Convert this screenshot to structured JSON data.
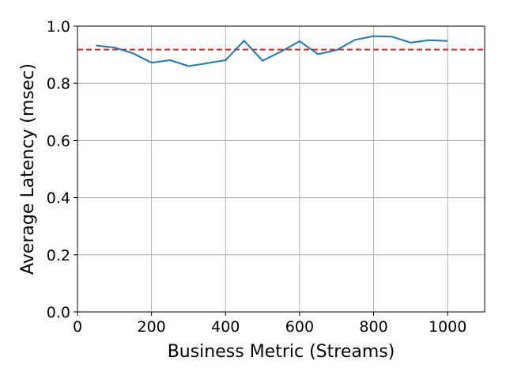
{
  "chart_data": {
    "type": "line",
    "xlabel": "Business Metric (Streams)",
    "ylabel": "Average Latency (msec)",
    "xlim": [
      0,
      1100
    ],
    "ylim": [
      0,
      1.0
    ],
    "xticks": [
      0,
      200,
      400,
      600,
      800,
      1000
    ],
    "yticks": [
      0.0,
      0.2,
      0.4,
      0.6,
      0.8,
      1.0
    ],
    "xtick_labels": [
      "0",
      "200",
      "400",
      "600",
      "800",
      "1000"
    ],
    "ytick_labels": [
      "0.0",
      "0.2",
      "0.4",
      "0.6",
      "0.8",
      "1.0"
    ],
    "grid": true,
    "series": [
      {
        "color": "#1f77b4",
        "x": [
          50,
          100,
          150,
          200,
          250,
          300,
          350,
          400,
          450,
          500,
          550,
          600,
          650,
          700,
          750,
          800,
          850,
          900,
          950,
          1000
        ],
        "y": [
          0.932,
          0.925,
          0.905,
          0.872,
          0.881,
          0.86,
          0.87,
          0.881,
          0.949,
          0.879,
          0.911,
          0.947,
          0.902,
          0.916,
          0.952,
          0.965,
          0.963,
          0.942,
          0.951,
          0.948
        ]
      }
    ],
    "reference_line": {
      "y": 0.918,
      "color": "#d62728",
      "style": "dashed"
    }
  }
}
